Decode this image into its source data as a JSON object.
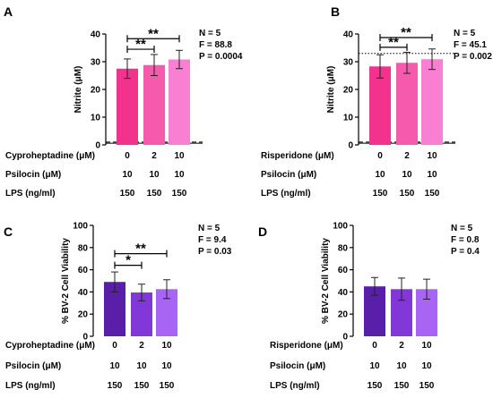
{
  "chart_data": [
    {
      "panel": "A",
      "type": "bar",
      "ylabel": "Nitrite (μM)",
      "ylim": [
        0,
        40
      ],
      "yticks": [
        0,
        10,
        20,
        30,
        40
      ],
      "categories": [
        "0",
        "2",
        "10"
      ],
      "values": [
        27.5,
        28.8,
        30.8
      ],
      "errors": [
        3.5,
        3.8,
        3.3
      ],
      "colors": [
        "#f2328d",
        "#f55aad",
        "#f97fd3"
      ],
      "reference_lines": [
        {
          "value": 1.0,
          "style": "dashed"
        },
        {
          "value": 0.6,
          "style": "solid"
        }
      ],
      "conditions": [
        {
          "label": "Cyproheptadine (μM)",
          "values": [
            "0",
            "2",
            "10"
          ]
        },
        {
          "label": "Psilocin (μM)",
          "values": [
            "10",
            "10",
            "10"
          ]
        },
        {
          "label": "LPS (ng/ml)",
          "values": [
            "150",
            "150",
            "150"
          ]
        }
      ],
      "stats": [
        "N = 5",
        "F = 88.8",
        "P = 0.0004"
      ],
      "significance": [
        {
          "from": 0,
          "to": 1,
          "label": "**",
          "y": 34.5
        },
        {
          "from": 0,
          "to": 2,
          "label": "**",
          "y": 38.3
        }
      ]
    },
    {
      "panel": "B",
      "type": "bar",
      "ylabel": "Nitrite (μM)",
      "ylim": [
        0,
        40
      ],
      "yticks": [
        0,
        10,
        20,
        30,
        40
      ],
      "categories": [
        "0",
        "2",
        "10"
      ],
      "values": [
        28.3,
        29.6,
        30.9
      ],
      "errors": [
        4.2,
        3.8,
        3.7
      ],
      "colors": [
        "#f2328d",
        "#f55aad",
        "#f97fd3"
      ],
      "reference_lines": [
        {
          "value": 33.0,
          "style": "dotted"
        },
        {
          "value": 1.0,
          "style": "dashed"
        },
        {
          "value": 0.6,
          "style": "solid"
        }
      ],
      "conditions": [
        {
          "label": "Risperidone (μM)",
          "values": [
            "0",
            "2",
            "10"
          ]
        },
        {
          "label": "Psilocin (μM)",
          "values": [
            "10",
            "10",
            "10"
          ]
        },
        {
          "label": "LPS (ng/ml)",
          "values": [
            "150",
            "150",
            "150"
          ]
        }
      ],
      "stats": [
        "N = 5",
        "F = 45.1",
        "P = 0.002"
      ],
      "significance": [
        {
          "from": 0,
          "to": 1,
          "label": "**",
          "y": 35.2
        },
        {
          "from": 0,
          "to": 2,
          "label": "**",
          "y": 38.7
        }
      ]
    },
    {
      "panel": "C",
      "type": "bar",
      "ylabel": "% BV-2 Cell Viability",
      "ylim": [
        0,
        100
      ],
      "yticks": [
        0,
        20,
        40,
        60,
        80,
        100
      ],
      "categories": [
        "0",
        "2",
        "10"
      ],
      "values": [
        49.0,
        39.5,
        42.5
      ],
      "errors": [
        9.0,
        7.5,
        8.5
      ],
      "colors": [
        "#5a1fa8",
        "#8238d8",
        "#a864f2"
      ],
      "conditions": [
        {
          "label": "Cyproheptadine (μM)",
          "values": [
            "0",
            "2",
            "10"
          ]
        },
        {
          "label": "Psilocin (μM)",
          "values": [
            "10",
            "10",
            "10"
          ]
        },
        {
          "label": "LPS (ng/ml)",
          "values": [
            "150",
            "150",
            "150"
          ]
        }
      ],
      "stats": [
        "N = 5",
        "F = 9.4",
        "P = 0.03"
      ],
      "significance": [
        {
          "from": 0,
          "to": 1,
          "label": "*",
          "y": 64.0
        },
        {
          "from": 0,
          "to": 2,
          "label": "**",
          "y": 74.5
        }
      ]
    },
    {
      "panel": "D",
      "type": "bar",
      "ylabel": "% BV-2 Cell Viability",
      "ylim": [
        0,
        100
      ],
      "yticks": [
        0,
        20,
        40,
        60,
        80,
        100
      ],
      "categories": [
        "0",
        "2",
        "10"
      ],
      "values": [
        45.0,
        42.5,
        42.5
      ],
      "errors": [
        8.0,
        10.0,
        9.0
      ],
      "colors": [
        "#5a1fa8",
        "#8238d8",
        "#a864f2"
      ],
      "conditions": [
        {
          "label": "Risperidone (μM)",
          "values": [
            "0",
            "2",
            "10"
          ]
        },
        {
          "label": "Psilocin (μM)",
          "values": [
            "10",
            "10",
            "10"
          ]
        },
        {
          "label": "LPS (ng/ml)",
          "values": [
            "150",
            "150",
            "150"
          ]
        }
      ],
      "stats": [
        "N = 5",
        "F = 0.8",
        "P = 0.4"
      ],
      "significance": []
    }
  ]
}
